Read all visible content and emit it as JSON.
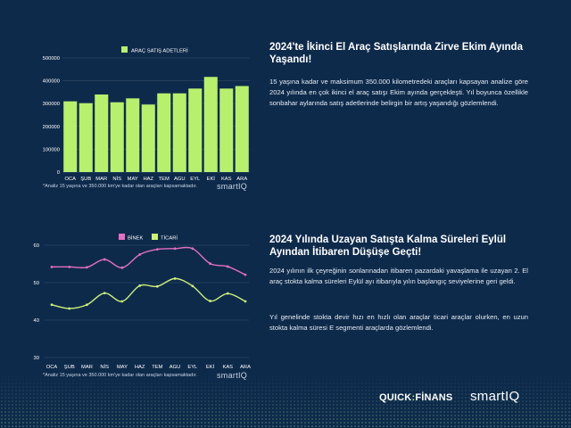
{
  "chart_data": [
    {
      "type": "bar",
      "title": "",
      "legend": [
        "ARAÇ SATIŞ ADETLERİ"
      ],
      "legend_position": "top",
      "categories": [
        "OCA",
        "ŞUB",
        "MAR",
        "NİS",
        "MAY",
        "HAZ",
        "TEM",
        "AGU",
        "EYL",
        "EKİ",
        "KAS",
        "ARA"
      ],
      "series": [
        {
          "name": "ARAÇ SATIŞ ADETLERİ",
          "color": "#b7f06d",
          "values": [
            310000,
            302000,
            340000,
            306000,
            323000,
            296000,
            345000,
            345000,
            366000,
            417000,
            366000,
            377000
          ]
        }
      ],
      "ylim": [
        0,
        500000
      ],
      "yticks": [
        "0",
        "100000",
        "200000",
        "300000",
        "400000",
        "500000"
      ],
      "grid": true,
      "xlabel": "",
      "ylabel": ""
    },
    {
      "type": "line",
      "title": "",
      "legend_position": "top",
      "categories": [
        "OCA",
        "ŞUB",
        "MAR",
        "NİS",
        "MAY",
        "HAZ",
        "TEM",
        "AGU",
        "EYL",
        "EKİ",
        "KAS",
        "ARA"
      ],
      "series": [
        {
          "name": "BİNEK",
          "color": "#e36fc3",
          "values": [
            54.2,
            54.2,
            54.1,
            56.2,
            54.0,
            57.5,
            58.9,
            59.1,
            59.1,
            55.1,
            54.3,
            52.1
          ]
        },
        {
          "name": "TİCARİ",
          "color": "#cdf07a",
          "values": [
            44.1,
            43.1,
            44.1,
            47.2,
            45.0,
            49.2,
            49.0,
            51.1,
            49.1,
            45.1,
            47.1,
            45.0
          ]
        }
      ],
      "ylim": [
        30,
        60
      ],
      "yticks": [
        "30",
        "40",
        "50",
        "60"
      ],
      "grid": true,
      "xlabel": "",
      "ylabel": ""
    }
  ],
  "chart1_note": "*Analiz 15 yaşına ve 350.000 km'ye kadar olan araçları kapsamaktadır.",
  "chart2_note": "*Analiz 15 yaşına ve 350.000 km'ye kadar olan araçları kapsamaktadır.",
  "smartiq_small": "smartIQ",
  "section1": {
    "title": "2024'te İkinci El Araç Satışlarında Zirve Ekim Ayında Yaşandı!",
    "body": "15 yaşına kadar ve maksimum 350.000 kilometredeki araçları kapsayan analize göre 2024 yılında en çok ikinci el araç satışı Ekim ayında gerçekleşti. Yıl boyunca özellikle sonbahar aylarında satış adetlerinde belirgin bir artış yaşandığı gözlemlendi."
  },
  "section2": {
    "title": "2024 Yılında Uzayan Satışta Kalma Süreleri Eylül Ayından İtibaren Düşüşe Geçti!",
    "body1": "2024 yılının ilk çeyreğinin sonlarınadan itibaren pazardaki yavaşlama ile uzayan 2. El araç stokta kalma süreleri Eylül ayı itibarıyla yılın başlangıç seviyelerine geri geldi.",
    "body2": "Yıl genelinde stokta devir hızı en hızlı olan araçlar ticari araçlar olurken, en uzun stokta kalma süresi E segmenti araçlarda gözlemlendi."
  },
  "footer": {
    "quick_part": "QUICK",
    "finans_part": "FİNANS",
    "smartiq": "smartIQ"
  }
}
